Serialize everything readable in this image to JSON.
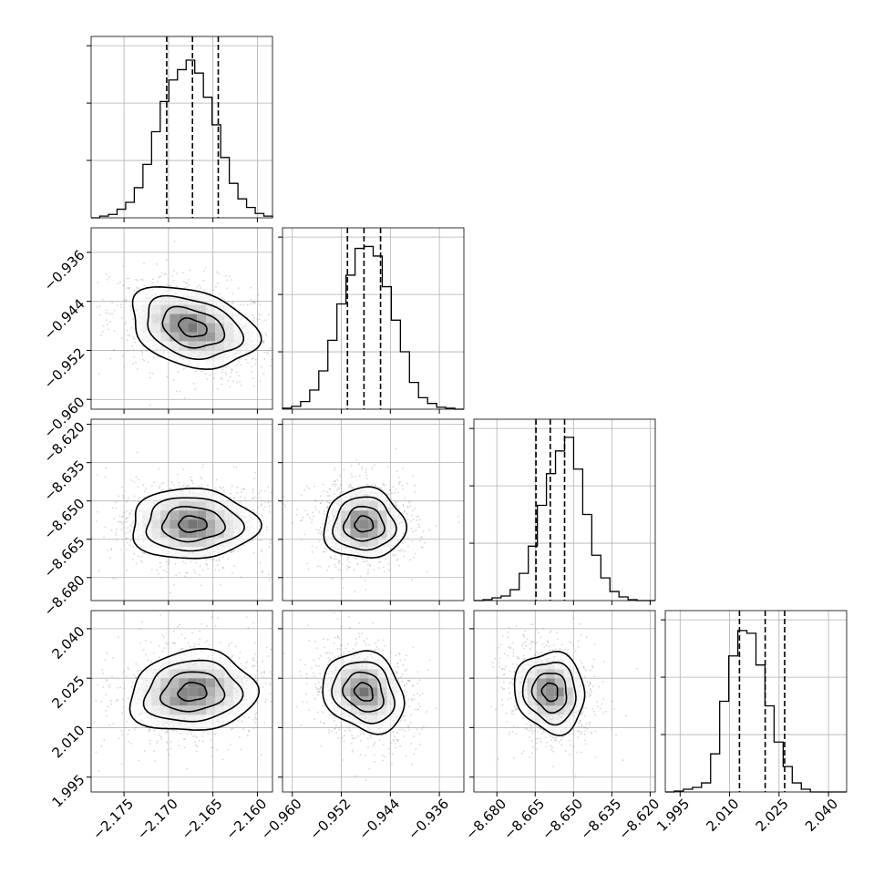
{
  "chart_data": {
    "type": "corner",
    "grid": true,
    "parameters": [
      {
        "ticks": [
          -2.175,
          -2.17,
          -2.165,
          -2.16
        ],
        "tick_labels": [
          "−2.175",
          "−2.170",
          "−2.165",
          "−2.160"
        ],
        "range": [
          -2.1787,
          -2.1583
        ]
      },
      {
        "ticks": [
          -0.96,
          -0.952,
          -0.944,
          -0.936
        ],
        "tick_labels": [
          "−0.960",
          "−0.952",
          "−0.944",
          "−0.936"
        ],
        "range": [
          -0.9616,
          -0.932
        ]
      },
      {
        "ticks": [
          -8.68,
          -8.665,
          -8.65,
          -8.635,
          -8.62
        ],
        "tick_labels": [
          "−8.680",
          "−8.665",
          "−8.650",
          "−8.635",
          "−8.620"
        ],
        "range": [
          -8.689,
          -8.618
        ]
      },
      {
        "ticks": [
          1.995,
          2.01,
          2.025,
          2.04
        ],
        "tick_labels": [
          "1.995",
          "2.010",
          "2.025",
          "2.040"
        ],
        "range": [
          1.9905,
          2.0455
        ]
      }
    ],
    "histograms": [
      {
        "bin_edges": [
          -2.1787,
          -2.1583
        ],
        "counts": [
          0,
          2,
          4,
          10,
          18,
          35,
          62,
          100,
          135,
          160,
          172,
          183,
          168,
          140,
          108,
          70,
          40,
          22,
          12,
          5,
          2
        ],
        "quantiles": [
          -2.1702,
          -2.1673,
          -2.1644
        ],
        "ymax": 200
      },
      {
        "bin_edges": [
          -0.9616,
          -0.932
        ],
        "counts": [
          1,
          3,
          8,
          20,
          40,
          72,
          110,
          140,
          168,
          170,
          160,
          128,
          93,
          60,
          28,
          12,
          6,
          2,
          1,
          0
        ],
        "quantiles": [
          -0.951,
          -0.9483,
          -0.9456
        ],
        "ymax": 180
      },
      {
        "bin_edges": [
          -8.689,
          -8.618
        ],
        "counts": [
          0,
          1,
          3,
          5,
          12,
          30,
          60,
          105,
          140,
          165,
          180,
          145,
          95,
          50,
          25,
          10,
          4,
          1,
          0,
          0
        ],
        "quantiles": [
          -8.6647,
          -8.6591,
          -8.6535
        ],
        "ymax": 190
      },
      {
        "bin_edges": [
          1.9905,
          2.0455
        ],
        "counts": [
          0,
          1,
          3,
          5,
          10,
          42,
          100,
          150,
          178,
          175,
          140,
          95,
          55,
          28,
          10,
          3,
          0,
          0,
          0,
          0
        ],
        "quantiles": [
          2.013,
          2.0208,
          2.0267
        ],
        "ymax": 190
      }
    ],
    "density_2d": [
      {
        "x": 0,
        "y": 1,
        "mean": [
          -2.1673,
          -0.9483
        ],
        "sd": [
          0.0029,
          0.0027
        ],
        "rho": -0.3
      },
      {
        "x": 0,
        "y": 2,
        "mean": [
          -2.1673,
          -8.6591
        ],
        "sd": [
          0.0029,
          0.0056
        ],
        "rho": 0.0
      },
      {
        "x": 1,
        "y": 2,
        "mean": [
          -0.9483,
          -8.6591
        ],
        "sd": [
          0.0027,
          0.0056
        ],
        "rho": 0.0
      },
      {
        "x": 0,
        "y": 3,
        "mean": [
          -2.1673,
          2.0208
        ],
        "sd": [
          0.0029,
          0.005
        ],
        "rho": 0.1
      },
      {
        "x": 1,
        "y": 3,
        "mean": [
          -0.9483,
          2.0208
        ],
        "sd": [
          0.0027,
          0.005
        ],
        "rho": -0.2
      },
      {
        "x": 2,
        "y": 3,
        "mean": [
          -8.6591,
          2.0208
        ],
        "sd": [
          0.0056,
          0.005
        ],
        "rho": -0.1
      }
    ]
  }
}
